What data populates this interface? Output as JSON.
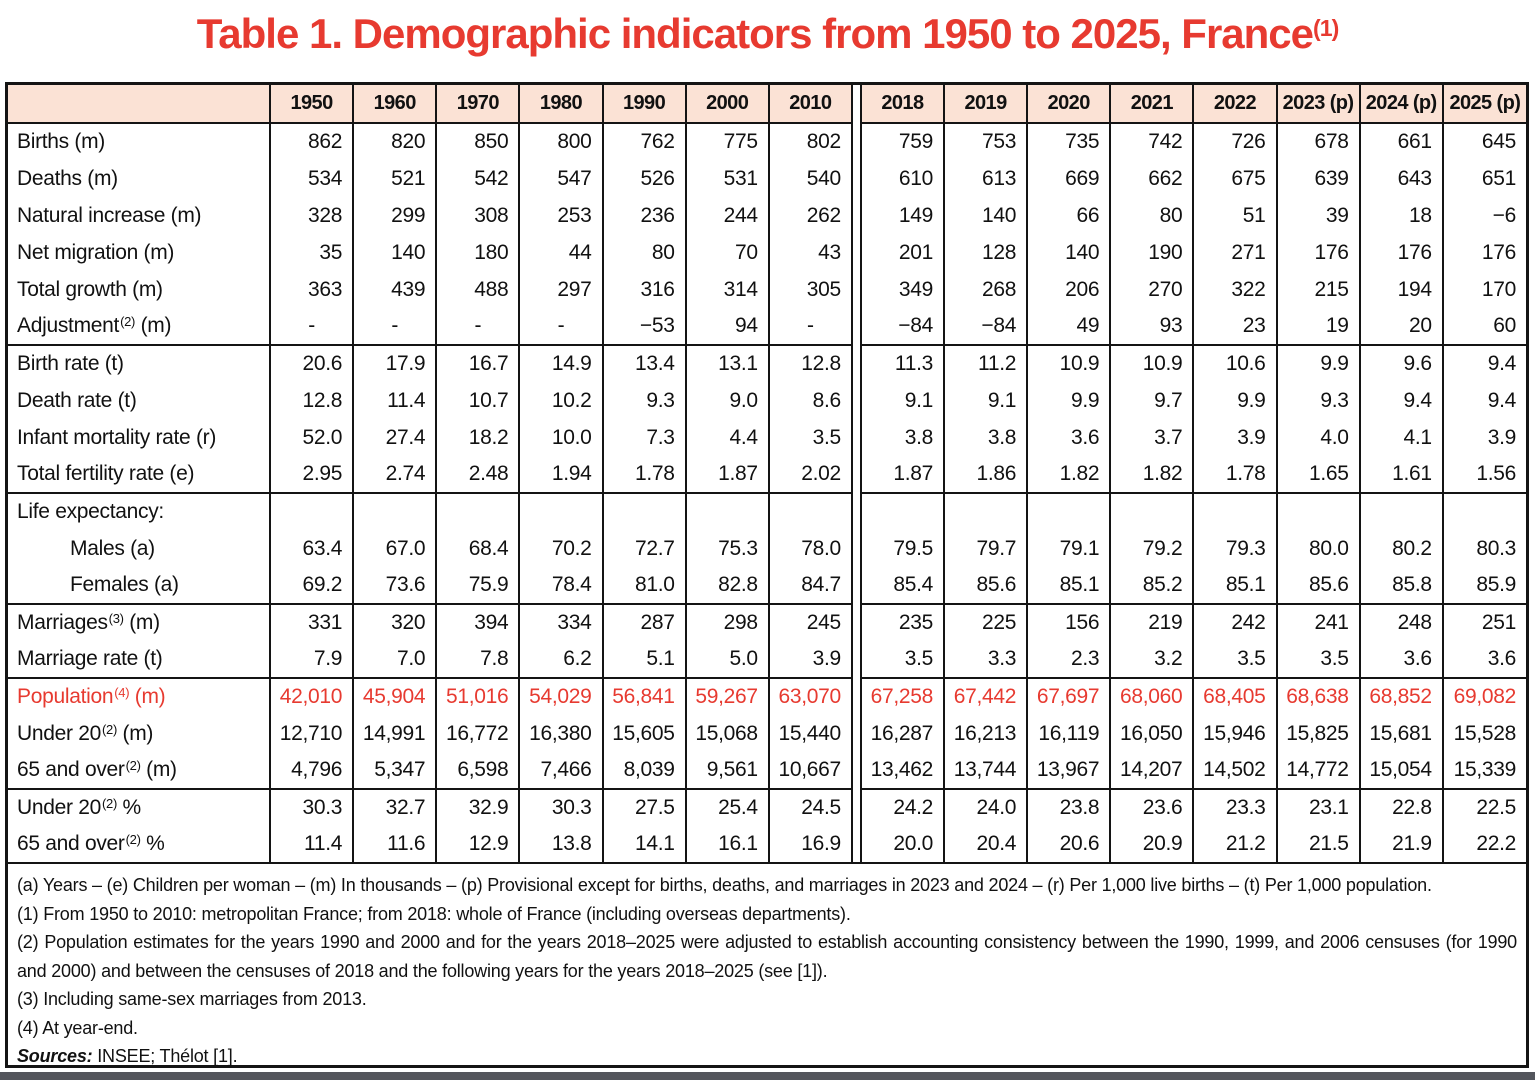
{
  "page": {
    "title": "Table 1. Demographic indicators from 1950 to 2025, France",
    "title_superscript": "(1)"
  },
  "colors": {
    "accent_red": "#e73a30",
    "header_bg": "#fbe2d5",
    "border": "#141414",
    "bottom_bar": "#53555c"
  },
  "table": {
    "left_years": [
      "1950",
      "1960",
      "1970",
      "1980",
      "1990",
      "2000",
      "2010"
    ],
    "right_years": [
      "2018",
      "2019",
      "2020",
      "2021",
      "2022",
      "2023 (p)",
      "2024 (p)",
      "2025 (p)"
    ],
    "rows": [
      {
        "base": "Births",
        "sup": "",
        "unit": "(m)",
        "indent": false,
        "red": false,
        "section": false,
        "left": [
          "862",
          "820",
          "850",
          "800",
          "762",
          "775",
          "802"
        ],
        "right": [
          "759",
          "753",
          "735",
          "742",
          "726",
          "678",
          "661",
          "645"
        ]
      },
      {
        "base": "Deaths",
        "sup": "",
        "unit": "(m)",
        "indent": false,
        "red": false,
        "section": false,
        "left": [
          "534",
          "521",
          "542",
          "547",
          "526",
          "531",
          "540"
        ],
        "right": [
          "610",
          "613",
          "669",
          "662",
          "675",
          "639",
          "643",
          "651"
        ]
      },
      {
        "base": "Natural increase",
        "sup": "",
        "unit": "(m)",
        "indent": false,
        "red": false,
        "section": false,
        "left": [
          "328",
          "299",
          "308",
          "253",
          "236",
          "244",
          "262"
        ],
        "right": [
          "149",
          "140",
          "66",
          "80",
          "51",
          "39",
          "18",
          "−6"
        ]
      },
      {
        "base": "Net migration",
        "sup": "",
        "unit": "(m)",
        "indent": false,
        "red": false,
        "section": false,
        "left": [
          "35",
          "140",
          "180",
          "44",
          "80",
          "70",
          "43"
        ],
        "right": [
          "201",
          "128",
          "140",
          "190",
          "271",
          "176",
          "176",
          "176"
        ]
      },
      {
        "base": "Total growth",
        "sup": "",
        "unit": "(m)",
        "indent": false,
        "red": false,
        "section": false,
        "left": [
          "363",
          "439",
          "488",
          "297",
          "316",
          "314",
          "305"
        ],
        "right": [
          "349",
          "268",
          "206",
          "270",
          "322",
          "215",
          "194",
          "170"
        ]
      },
      {
        "base": "Adjustment",
        "sup": "(2)",
        "unit": "(m)",
        "indent": false,
        "red": false,
        "section": false,
        "left": [
          "-",
          "-",
          "-",
          "-",
          "−53",
          "94",
          "-"
        ],
        "right": [
          "−84",
          "−84",
          "49",
          "93",
          "23",
          "19",
          "20",
          "60"
        ]
      },
      {
        "base": "Birth rate",
        "sup": "",
        "unit": "(t)",
        "indent": false,
        "red": false,
        "section": true,
        "left": [
          "20.6",
          "17.9",
          "16.7",
          "14.9",
          "13.4",
          "13.1",
          "12.8"
        ],
        "right": [
          "11.3",
          "11.2",
          "10.9",
          "10.9",
          "10.6",
          "9.9",
          "9.6",
          "9.4"
        ]
      },
      {
        "base": "Death rate",
        "sup": "",
        "unit": "(t)",
        "indent": false,
        "red": false,
        "section": false,
        "left": [
          "12.8",
          "11.4",
          "10.7",
          "10.2",
          "9.3",
          "9.0",
          "8.6"
        ],
        "right": [
          "9.1",
          "9.1",
          "9.9",
          "9.7",
          "9.9",
          "9.3",
          "9.4",
          "9.4"
        ]
      },
      {
        "base": "Infant mortality rate",
        "sup": "",
        "unit": "(r)",
        "indent": false,
        "red": false,
        "section": false,
        "left": [
          "52.0",
          "27.4",
          "18.2",
          "10.0",
          "7.3",
          "4.4",
          "3.5"
        ],
        "right": [
          "3.8",
          "3.8",
          "3.6",
          "3.7",
          "3.9",
          "4.0",
          "4.1",
          "3.9"
        ]
      },
      {
        "base": "Total fertility rate",
        "sup": "",
        "unit": "(e)",
        "indent": false,
        "red": false,
        "section": false,
        "left": [
          "2.95",
          "2.74",
          "2.48",
          "1.94",
          "1.78",
          "1.87",
          "2.02"
        ],
        "right": [
          "1.87",
          "1.86",
          "1.82",
          "1.82",
          "1.78",
          "1.65",
          "1.61",
          "1.56"
        ]
      },
      {
        "base": "Life expectancy:",
        "sup": "",
        "unit": "",
        "indent": false,
        "red": false,
        "section": true,
        "left": [
          "",
          "",
          "",
          "",
          "",
          "",
          ""
        ],
        "right": [
          "",
          "",
          "",
          "",
          "",
          "",
          "",
          ""
        ]
      },
      {
        "base": "Males",
        "sup": "",
        "unit": "(a)",
        "indent": true,
        "red": false,
        "section": false,
        "left": [
          "63.4",
          "67.0",
          "68.4",
          "70.2",
          "72.7",
          "75.3",
          "78.0"
        ],
        "right": [
          "79.5",
          "79.7",
          "79.1",
          "79.2",
          "79.3",
          "80.0",
          "80.2",
          "80.3"
        ]
      },
      {
        "base": "Females",
        "sup": "",
        "unit": "(a)",
        "indent": true,
        "red": false,
        "section": false,
        "left": [
          "69.2",
          "73.6",
          "75.9",
          "78.4",
          "81.0",
          "82.8",
          "84.7"
        ],
        "right": [
          "85.4",
          "85.6",
          "85.1",
          "85.2",
          "85.1",
          "85.6",
          "85.8",
          "85.9"
        ]
      },
      {
        "base": "Marriages",
        "sup": "(3)",
        "unit": "(m)",
        "indent": false,
        "red": false,
        "section": true,
        "left": [
          "331",
          "320",
          "394",
          "334",
          "287",
          "298",
          "245"
        ],
        "right": [
          "235",
          "225",
          "156",
          "219",
          "242",
          "241",
          "248",
          "251"
        ]
      },
      {
        "base": "Marriage rate",
        "sup": "",
        "unit": "(t)",
        "indent": false,
        "red": false,
        "section": false,
        "left": [
          "7.9",
          "7.0",
          "7.8",
          "6.2",
          "5.1",
          "5.0",
          "3.9"
        ],
        "right": [
          "3.5",
          "3.3",
          "2.3",
          "3.2",
          "3.5",
          "3.5",
          "3.6",
          "3.6"
        ]
      },
      {
        "base": "Population",
        "sup": "(4)",
        "unit": "(m)",
        "indent": false,
        "red": true,
        "section": true,
        "left": [
          "42,010",
          "45,904",
          "51,016",
          "54,029",
          "56,841",
          "59,267",
          "63,070"
        ],
        "right": [
          "67,258",
          "67,442",
          "67,697",
          "68,060",
          "68,405",
          "68,638",
          "68,852",
          "69,082"
        ]
      },
      {
        "base": "Under 20",
        "sup": "(2)",
        "unit": "(m)",
        "indent": false,
        "red": false,
        "section": false,
        "left": [
          "12,710",
          "14,991",
          "16,772",
          "16,380",
          "15,605",
          "15,068",
          "15,440"
        ],
        "right": [
          "16,287",
          "16,213",
          "16,119",
          "16,050",
          "15,946",
          "15,825",
          "15,681",
          "15,528"
        ]
      },
      {
        "base": "65 and over",
        "sup": "(2)",
        "unit": "(m)",
        "indent": false,
        "red": false,
        "section": false,
        "left": [
          "4,796",
          "5,347",
          "6,598",
          "7,466",
          "8,039",
          "9,561",
          "10,667"
        ],
        "right": [
          "13,462",
          "13,744",
          "13,967",
          "14,207",
          "14,502",
          "14,772",
          "15,054",
          "15,339"
        ]
      },
      {
        "base": "Under 20",
        "sup": "(2)",
        "unit": "%",
        "indent": false,
        "red": false,
        "section": true,
        "left": [
          "30.3",
          "32.7",
          "32.9",
          "30.3",
          "27.5",
          "25.4",
          "24.5"
        ],
        "right": [
          "24.2",
          "24.0",
          "23.8",
          "23.6",
          "23.3",
          "23.1",
          "22.8",
          "22.5"
        ]
      },
      {
        "base": "65 and over",
        "sup": "(2)",
        "unit": "%",
        "indent": false,
        "red": false,
        "section": false,
        "left": [
          "11.4",
          "11.6",
          "12.9",
          "13.8",
          "14.1",
          "16.1",
          "16.9"
        ],
        "right": [
          "20.0",
          "20.4",
          "20.6",
          "20.9",
          "21.2",
          "21.5",
          "21.9",
          "22.2"
        ]
      }
    ]
  },
  "footnotes": [
    "(a) Years – (e) Children per woman – (m) In thousands – (p) Provisional except for births, deaths, and marriages in 2023 and 2024 – (r) Per 1,000 live births – (t) Per 1,000 population.",
    "(1) From 1950 to 2010: metropolitan France; from 2018: whole of France (including overseas departments).",
    "(2) Population estimates for the years 1990 and 2000 and for the years 2018–2025 were adjusted to establish accounting consistency between the 1990, 1999, and 2006 censuses (for 1990 and 2000) and between the censuses of 2018 and the following years for the years 2018–2025 (see [1]).",
    "(3) Including same-sex marriages from 2013.",
    "(4) At year-end."
  ],
  "sources_label": "Sources:",
  "sources_text": " INSEE; Thélot [1]."
}
